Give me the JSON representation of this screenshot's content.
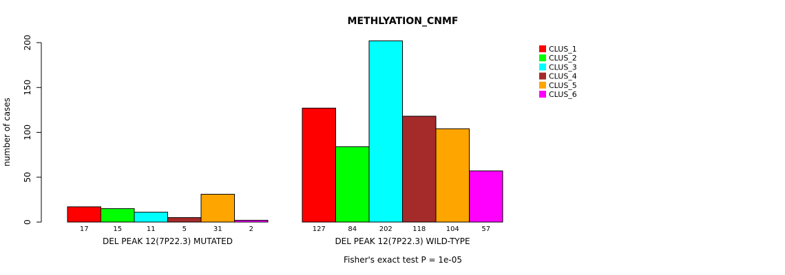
{
  "chart_data": {
    "type": "bar",
    "title": "METHLYATION_CNMF",
    "ylabel": "number of cases",
    "ylim": [
      0,
      200
    ],
    "yticks": [
      0,
      50,
      100,
      150,
      200
    ],
    "series": [
      {
        "name": "CLUS_1",
        "color": "#ff0000"
      },
      {
        "name": "CLUS_2",
        "color": "#00ff00"
      },
      {
        "name": "CLUS_3",
        "color": "#00ffff"
      },
      {
        "name": "CLUS_4",
        "color": "#a52a2a"
      },
      {
        "name": "CLUS_5",
        "color": "#ffa500"
      },
      {
        "name": "CLUS_6",
        "color": "#ff00ff"
      }
    ],
    "groups": [
      {
        "name": "DEL PEAK 12(7P22.3) MUTATED",
        "values": [
          17,
          15,
          11,
          5,
          31,
          2
        ]
      },
      {
        "name": "DEL PEAK 12(7P22.3) WILD-TYPE",
        "values": [
          127,
          84,
          202,
          118,
          104,
          57
        ]
      }
    ],
    "footnote": "Fisher's exact test P = 1e-05"
  }
}
